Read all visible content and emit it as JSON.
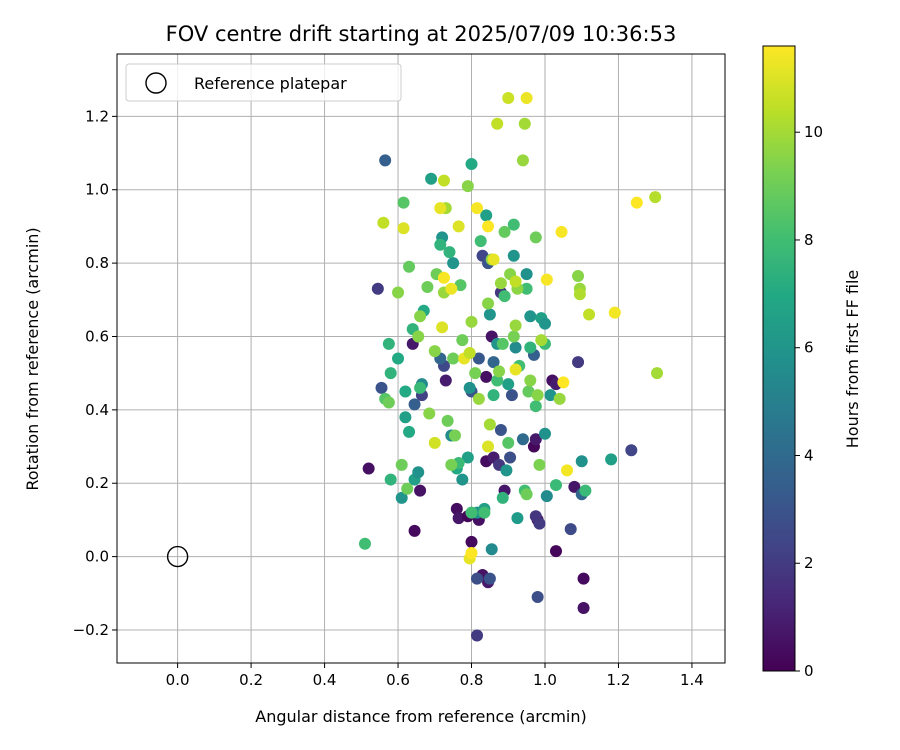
{
  "chart_data": {
    "type": "scatter",
    "title": "FOV centre drift starting at 2025/07/09 10:36:53",
    "xlabel": "Angular distance from reference (arcmin)",
    "ylabel": "Rotation from reference (arcmin)",
    "xlim": [
      -0.165,
      1.49
    ],
    "ylim": [
      -0.29,
      1.37
    ],
    "x_ticks": [
      0.0,
      0.2,
      0.4,
      0.6,
      0.8,
      1.0,
      1.2,
      1.4
    ],
    "x_tick_labels": [
      "0.0",
      "0.2",
      "0.4",
      "0.6",
      "0.8",
      "1.0",
      "1.2",
      "1.4"
    ],
    "y_ticks": [
      -0.2,
      0.0,
      0.2,
      0.4,
      0.6,
      0.8,
      1.0,
      1.2
    ],
    "y_tick_labels": [
      "−0.2",
      "0.0",
      "0.2",
      "0.4",
      "0.6",
      "0.8",
      "1.0",
      "1.2"
    ],
    "grid": true,
    "legend": {
      "placement": "top-left",
      "entries": [
        "Reference platepar"
      ]
    },
    "reference": {
      "x": 0.0,
      "y": 0.0
    },
    "colorbar": {
      "label": "Hours from first FF file",
      "min": 0,
      "max": 11.6,
      "ticks": [
        0,
        2,
        4,
        6,
        8,
        10
      ],
      "tick_labels": [
        "0",
        "2",
        "4",
        "6",
        "8",
        "10"
      ],
      "colormap": "viridis"
    },
    "points": [
      [
        0.52,
        0.24,
        0.5
      ],
      [
        0.645,
        0.07,
        0.3
      ],
      [
        0.66,
        0.18,
        0.6
      ],
      [
        0.64,
        0.58,
        0.8
      ],
      [
        0.73,
        0.48,
        0.9
      ],
      [
        0.76,
        0.13,
        0.4
      ],
      [
        0.765,
        0.105,
        0.7
      ],
      [
        0.79,
        0.11,
        0.2
      ],
      [
        0.8,
        0.04,
        0.3
      ],
      [
        0.82,
        0.1,
        0.5
      ],
      [
        0.83,
        -0.05,
        0.6
      ],
      [
        0.845,
        -0.07,
        0.8
      ],
      [
        0.84,
        0.26,
        0.4
      ],
      [
        0.86,
        0.27,
        0.9
      ],
      [
        0.89,
        0.18,
        0.7
      ],
      [
        0.84,
        0.49,
        0.5
      ],
      [
        0.855,
        0.6,
        0.6
      ],
      [
        0.97,
        0.3,
        0.2
      ],
      [
        0.975,
        0.32,
        0.8
      ],
      [
        0.98,
        0.1,
        0.4
      ],
      [
        1.03,
        0.015,
        0.2
      ],
      [
        1.02,
        0.48,
        0.5
      ],
      [
        1.03,
        0.47,
        0.9
      ],
      [
        1.105,
        -0.06,
        0.3
      ],
      [
        1.105,
        -0.14,
        0.6
      ],
      [
        1.08,
        0.19,
        0.7
      ],
      [
        0.565,
        1.08,
        3.5
      ],
      [
        0.545,
        0.73,
        2.0
      ],
      [
        0.555,
        0.46,
        3.0
      ],
      [
        0.645,
        0.415,
        3.5
      ],
      [
        0.665,
        0.44,
        2.2
      ],
      [
        0.725,
        0.52,
        2.5
      ],
      [
        0.715,
        0.54,
        3.8
      ],
      [
        0.82,
        0.54,
        3.2
      ],
      [
        0.83,
        0.82,
        2.4
      ],
      [
        0.845,
        0.8,
        3.0
      ],
      [
        0.875,
        0.25,
        1.8
      ],
      [
        0.88,
        0.345,
        3.0
      ],
      [
        0.905,
        0.27,
        2.8
      ],
      [
        0.85,
        -0.06,
        3.0
      ],
      [
        0.815,
        -0.06,
        2.8
      ],
      [
        0.815,
        -0.215,
        2.0
      ],
      [
        0.98,
        -0.11,
        2.8
      ],
      [
        0.985,
        0.09,
        2.0
      ],
      [
        0.975,
        0.11,
        1.8
      ],
      [
        0.94,
        0.32,
        4.0
      ],
      [
        0.97,
        0.55,
        3.5
      ],
      [
        0.91,
        0.44,
        3.0
      ],
      [
        0.86,
        0.53,
        3.8
      ],
      [
        0.8,
        0.45,
        3.0
      ],
      [
        1.09,
        0.53,
        2.0
      ],
      [
        1.07,
        0.075,
        2.6
      ],
      [
        1.235,
        0.29,
        2.4
      ],
      [
        1.1,
        0.17,
        3.8
      ],
      [
        0.88,
        0.72,
        1.8
      ],
      [
        0.61,
        0.16,
        6.0
      ],
      [
        0.62,
        0.38,
        6.5
      ],
      [
        0.63,
        0.34,
        7.0
      ],
      [
        0.645,
        0.21,
        6.5
      ],
      [
        0.655,
        0.23,
        5.8
      ],
      [
        0.665,
        0.47,
        5.5
      ],
      [
        0.67,
        0.67,
        7.0
      ],
      [
        0.69,
        1.03,
        6.5
      ],
      [
        0.72,
        0.87,
        6.0
      ],
      [
        0.75,
        0.8,
        6.0
      ],
      [
        0.745,
        0.33,
        5.5
      ],
      [
        0.76,
        0.24,
        7.0
      ],
      [
        0.775,
        0.21,
        6.0
      ],
      [
        0.79,
        0.27,
        6.5
      ],
      [
        0.795,
        0.46,
        5.8
      ],
      [
        0.8,
        1.07,
        7.0
      ],
      [
        0.815,
        0.12,
        6.0
      ],
      [
        0.835,
        0.13,
        6.5
      ],
      [
        0.84,
        0.93,
        6.5
      ],
      [
        0.85,
        0.66,
        6.0
      ],
      [
        0.855,
        0.02,
        5.5
      ],
      [
        0.87,
        0.58,
        6.0
      ],
      [
        0.895,
        0.235,
        6.0
      ],
      [
        0.9,
        0.47,
        6.5
      ],
      [
        0.915,
        0.82,
        6.0
      ],
      [
        0.92,
        0.57,
        5.5
      ],
      [
        0.925,
        0.105,
        6.3
      ],
      [
        0.95,
        0.77,
        5.8
      ],
      [
        0.96,
        0.655,
        6.0
      ],
      [
        0.99,
        0.65,
        6.5
      ],
      [
        1.0,
        0.635,
        6.0
      ],
      [
        1.005,
        0.165,
        5.5
      ],
      [
        1.0,
        0.335,
        5.8
      ],
      [
        1.015,
        0.44,
        6.0
      ],
      [
        1.1,
        0.26,
        5.8
      ],
      [
        1.18,
        0.265,
        6.5
      ],
      [
        0.575,
        0.58,
        7.5
      ],
      [
        0.58,
        0.21,
        7.5
      ],
      [
        0.58,
        0.5,
        7.5
      ],
      [
        0.6,
        0.54,
        7.0
      ],
      [
        0.62,
        0.45,
        7.0
      ],
      [
        0.64,
        0.62,
        7.5
      ],
      [
        0.66,
        0.46,
        7.8
      ],
      [
        0.715,
        0.85,
        7.5
      ],
      [
        0.74,
        0.83,
        7.5
      ],
      [
        0.765,
        0.255,
        7.8
      ],
      [
        0.8,
        0.12,
        8.0
      ],
      [
        0.825,
        0.86,
        8.0
      ],
      [
        0.835,
        0.12,
        8.0
      ],
      [
        0.86,
        0.44,
        7.5
      ],
      [
        0.87,
        0.48,
        8.0
      ],
      [
        0.885,
        0.16,
        7.5
      ],
      [
        0.89,
        0.71,
        8.0
      ],
      [
        0.915,
        0.905,
        8.0
      ],
      [
        0.93,
        0.52,
        8.0
      ],
      [
        0.945,
        0.18,
        8.0
      ],
      [
        0.95,
        0.73,
        8.0
      ],
      [
        0.96,
        0.57,
        7.5
      ],
      [
        0.975,
        0.41,
        8.0
      ],
      [
        1.0,
        0.58,
        7.8
      ],
      [
        1.03,
        0.195,
        7.8
      ],
      [
        1.11,
        0.18,
        7.8
      ],
      [
        0.51,
        0.035,
        8.0
      ],
      [
        0.565,
        0.43,
        8.5
      ],
      [
        0.575,
        0.42,
        9.0
      ],
      [
        0.6,
        0.72,
        9.5
      ],
      [
        0.61,
        0.25,
        9.0
      ],
      [
        0.615,
        0.965,
        8.5
      ],
      [
        0.625,
        0.185,
        9.0
      ],
      [
        0.63,
        0.79,
        8.8
      ],
      [
        0.655,
        0.6,
        9.5
      ],
      [
        0.66,
        0.655,
        9.5
      ],
      [
        0.68,
        0.735,
        9.0
      ],
      [
        0.685,
        0.39,
        9.5
      ],
      [
        0.7,
        0.56,
        9.5
      ],
      [
        0.705,
        0.77,
        9.0
      ],
      [
        0.725,
        0.72,
        9.8
      ],
      [
        0.73,
        0.95,
        10.0
      ],
      [
        0.735,
        0.37,
        9.0
      ],
      [
        0.745,
        0.25,
        9.2
      ],
      [
        0.75,
        0.54,
        9.0
      ],
      [
        0.755,
        0.33,
        9.2
      ],
      [
        0.77,
        0.74,
        8.5
      ],
      [
        0.775,
        0.59,
        9.0
      ],
      [
        0.79,
        1.01,
        9.5
      ],
      [
        0.8,
        0.64,
        9.8
      ],
      [
        0.81,
        0.5,
        9.2
      ],
      [
        0.82,
        0.43,
        9.8
      ],
      [
        0.845,
        0.69,
        9.5
      ],
      [
        0.85,
        0.36,
        10.0
      ],
      [
        0.855,
        0.81,
        9.5
      ],
      [
        0.875,
        0.505,
        9.5
      ],
      [
        0.88,
        0.745,
        9.8
      ],
      [
        0.885,
        0.58,
        8.5
      ],
      [
        0.89,
        0.885,
        8.8
      ],
      [
        0.9,
        0.31,
        8.5
      ],
      [
        0.905,
        0.77,
        9.5
      ],
      [
        0.915,
        0.6,
        9.2
      ],
      [
        0.92,
        0.63,
        9.8
      ],
      [
        0.925,
        0.73,
        9.6
      ],
      [
        0.94,
        1.08,
        9.8
      ],
      [
        0.945,
        1.18,
        10.0
      ],
      [
        0.95,
        0.17,
        9.0
      ],
      [
        0.955,
        0.45,
        8.8
      ],
      [
        0.96,
        0.48,
        9.5
      ],
      [
        0.975,
        0.87,
        9.0
      ],
      [
        0.98,
        0.44,
        9.5
      ],
      [
        0.985,
        0.25,
        9.3
      ],
      [
        0.99,
        0.59,
        10.0
      ],
      [
        1.04,
        0.43,
        9.8
      ],
      [
        1.09,
        0.765,
        9.5
      ],
      [
        1.095,
        0.73,
        9.8
      ],
      [
        1.095,
        0.715,
        10.2
      ],
      [
        1.12,
        0.66,
        10.5
      ],
      [
        1.3,
        0.98,
        10.3
      ],
      [
        1.305,
        0.5,
        10.0
      ],
      [
        0.56,
        0.91,
        10.5
      ],
      [
        0.615,
        0.895,
        11.0
      ],
      [
        0.7,
        0.31,
        10.8
      ],
      [
        0.715,
        0.95,
        11.2
      ],
      [
        0.725,
        1.025,
        10.5
      ],
      [
        0.72,
        0.625,
        11.0
      ],
      [
        0.725,
        0.76,
        11.5
      ],
      [
        0.745,
        0.73,
        11.3
      ],
      [
        0.765,
        0.9,
        11.0
      ],
      [
        0.78,
        0.54,
        11.2
      ],
      [
        0.795,
        -0.005,
        11.2
      ],
      [
        0.795,
        0.555,
        10.5
      ],
      [
        0.8,
        0.01,
        11.6
      ],
      [
        0.815,
        0.95,
        11.5
      ],
      [
        0.845,
        0.9,
        11.6
      ],
      [
        0.845,
        0.3,
        11.0
      ],
      [
        0.86,
        0.81,
        11.2
      ],
      [
        0.87,
        1.18,
        10.5
      ],
      [
        0.9,
        1.25,
        10.7
      ],
      [
        0.92,
        0.75,
        10.5
      ],
      [
        0.92,
        0.51,
        11.2
      ],
      [
        0.95,
        1.25,
        11.3
      ],
      [
        1.005,
        0.755,
        11.5
      ],
      [
        1.045,
        0.885,
        11.5
      ],
      [
        1.05,
        0.475,
        11.6
      ],
      [
        1.06,
        0.235,
        11.4
      ],
      [
        1.19,
        0.665,
        11.4
      ],
      [
        1.25,
        0.965,
        11.6
      ]
    ]
  }
}
